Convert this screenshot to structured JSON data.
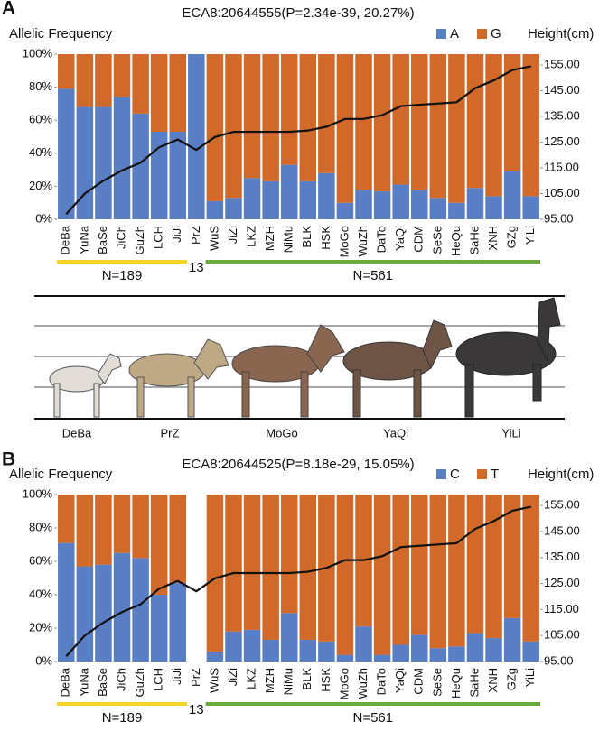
{
  "chart_data": [
    {
      "type": "bar",
      "stacked": true,
      "panel": "A",
      "title": "ECA8:20644555(P=2.34e-39, 20.27%)",
      "ylabel": "Allelic Frequency",
      "y2label": "Height(cm)",
      "categories": [
        "DeBa",
        "YuNa",
        "BaSe",
        "JiCh",
        "GuZh",
        "LCH",
        "JiJi",
        "PrZ",
        "WuS",
        "JiZi",
        "LKZ",
        "MZH",
        "NiMu",
        "BLK",
        "HSK",
        "MoGo",
        "WuZh",
        "DaTo",
        "YaQi",
        "CDM",
        "SeSe",
        "HeQu",
        "SaHe",
        "XNH",
        "GZg",
        "YiLi"
      ],
      "series": [
        {
          "name": "A",
          "color": "#5a7ec4",
          "values": [
            79,
            68,
            68,
            74,
            64,
            53,
            53,
            100,
            11,
            13,
            25,
            23,
            33,
            23,
            28,
            10,
            18,
            17,
            21,
            18,
            13,
            10,
            19,
            14,
            29,
            14
          ]
        },
        {
          "name": "G",
          "color": "#d0692a",
          "values": [
            21,
            32,
            32,
            26,
            36,
            47,
            47,
            0,
            89,
            87,
            75,
            77,
            67,
            77,
            72,
            90,
            82,
            83,
            79,
            82,
            87,
            90,
            81,
            86,
            71,
            86
          ]
        }
      ],
      "line": {
        "axis": "y2",
        "color": "#111111",
        "values": [
          97,
          105,
          110,
          114,
          117,
          123,
          126,
          122,
          127,
          129,
          129,
          129,
          129,
          129.5,
          131,
          134,
          134,
          135.5,
          139,
          139.5,
          140,
          140.5,
          146,
          149,
          153,
          154.5
        ]
      },
      "ylim": [
        0,
        100
      ],
      "yticks": [
        {
          "value": 0,
          "label": "0%"
        },
        {
          "value": 20,
          "label": "20%"
        },
        {
          "value": 40,
          "label": "40%"
        },
        {
          "value": 60,
          "label": "60%"
        },
        {
          "value": 80,
          "label": "80%"
        },
        {
          "value": 100,
          "label": "100%"
        }
      ],
      "y2lim": [
        95,
        159.2
      ],
      "y2ticks": [
        {
          "value": 95,
          "label": "95.00"
        },
        {
          "value": 105,
          "label": "105.00"
        },
        {
          "value": 115,
          "label": "115.00"
        },
        {
          "value": 125,
          "label": "125.00"
        },
        {
          "value": 135,
          "label": "135.00"
        },
        {
          "value": 145,
          "label": "145.00"
        },
        {
          "value": 155,
          "label": "155.00"
        }
      ],
      "groups": [
        {
          "label": "N=189",
          "color": "#f5d327"
        },
        {
          "label": "13"
        },
        {
          "label": "N=561",
          "color": "#6aaa3a"
        }
      ]
    },
    {
      "type": "bar",
      "stacked": true,
      "panel": "B",
      "title": "ECA8:20644525(P=8.18e-29, 15.05%)",
      "ylabel": "Allelic Frequency",
      "y2label": "Height(cm)",
      "categories": [
        "DeBa",
        "YuNa",
        "BaSe",
        "JiCh",
        "GuZh",
        "LCH",
        "JiJi",
        "PrZ",
        "WuS",
        "JiZi",
        "LKZ",
        "MZH",
        "NiMu",
        "BLK",
        "HSK",
        "MoGo",
        "WuZh",
        "DaTo",
        "YaQi",
        "CDM",
        "SeSe",
        "HeQu",
        "SaHe",
        "XNH",
        "GZg",
        "YiLi"
      ],
      "series": [
        {
          "name": "C",
          "color": "#5a7ec4",
          "values": [
            71,
            57,
            58,
            65,
            62,
            40,
            47,
            null,
            6,
            18,
            19,
            13,
            29,
            13,
            12,
            4,
            21,
            4,
            10,
            16,
            8,
            9,
            17,
            14,
            26,
            12
          ]
        },
        {
          "name": "T",
          "color": "#d0692a",
          "values": [
            29,
            43,
            42,
            35,
            38,
            60,
            53,
            null,
            94,
            82,
            81,
            87,
            71,
            87,
            88,
            96,
            79,
            96,
            90,
            84,
            92,
            91,
            83,
            86,
            74,
            88
          ]
        }
      ],
      "line": {
        "axis": "y2",
        "color": "#111111",
        "values": [
          97,
          105,
          110,
          114,
          117,
          123,
          126,
          122,
          127,
          129,
          129,
          129,
          129,
          129.5,
          131,
          134,
          134,
          135.5,
          139,
          139.5,
          140,
          140.5,
          146,
          149,
          153,
          154.5
        ]
      },
      "ylim": [
        0,
        100
      ],
      "yticks": [
        {
          "value": 0,
          "label": "0%"
        },
        {
          "value": 20,
          "label": "20%"
        },
        {
          "value": 40,
          "label": "40%"
        },
        {
          "value": 60,
          "label": "60%"
        },
        {
          "value": 80,
          "label": "80%"
        },
        {
          "value": 100,
          "label": "100%"
        }
      ],
      "y2lim": [
        95,
        159.2
      ],
      "y2ticks": [
        {
          "value": 95,
          "label": "95.00"
        },
        {
          "value": 105,
          "label": "105.00"
        },
        {
          "value": 115,
          "label": "115.00"
        },
        {
          "value": 125,
          "label": "125.00"
        },
        {
          "value": 135,
          "label": "135.00"
        },
        {
          "value": 145,
          "label": "145.00"
        },
        {
          "value": 155,
          "label": "155.00"
        }
      ],
      "groups": [
        {
          "label": "N=189",
          "color": "#f5d327"
        },
        {
          "label": "13"
        },
        {
          "label": "N=561",
          "color": "#6aaa3a"
        }
      ]
    }
  ],
  "illustration": {
    "labels": [
      "DeBa",
      "PrZ",
      "MoGo",
      "YaQi",
      "YiLi"
    ]
  }
}
